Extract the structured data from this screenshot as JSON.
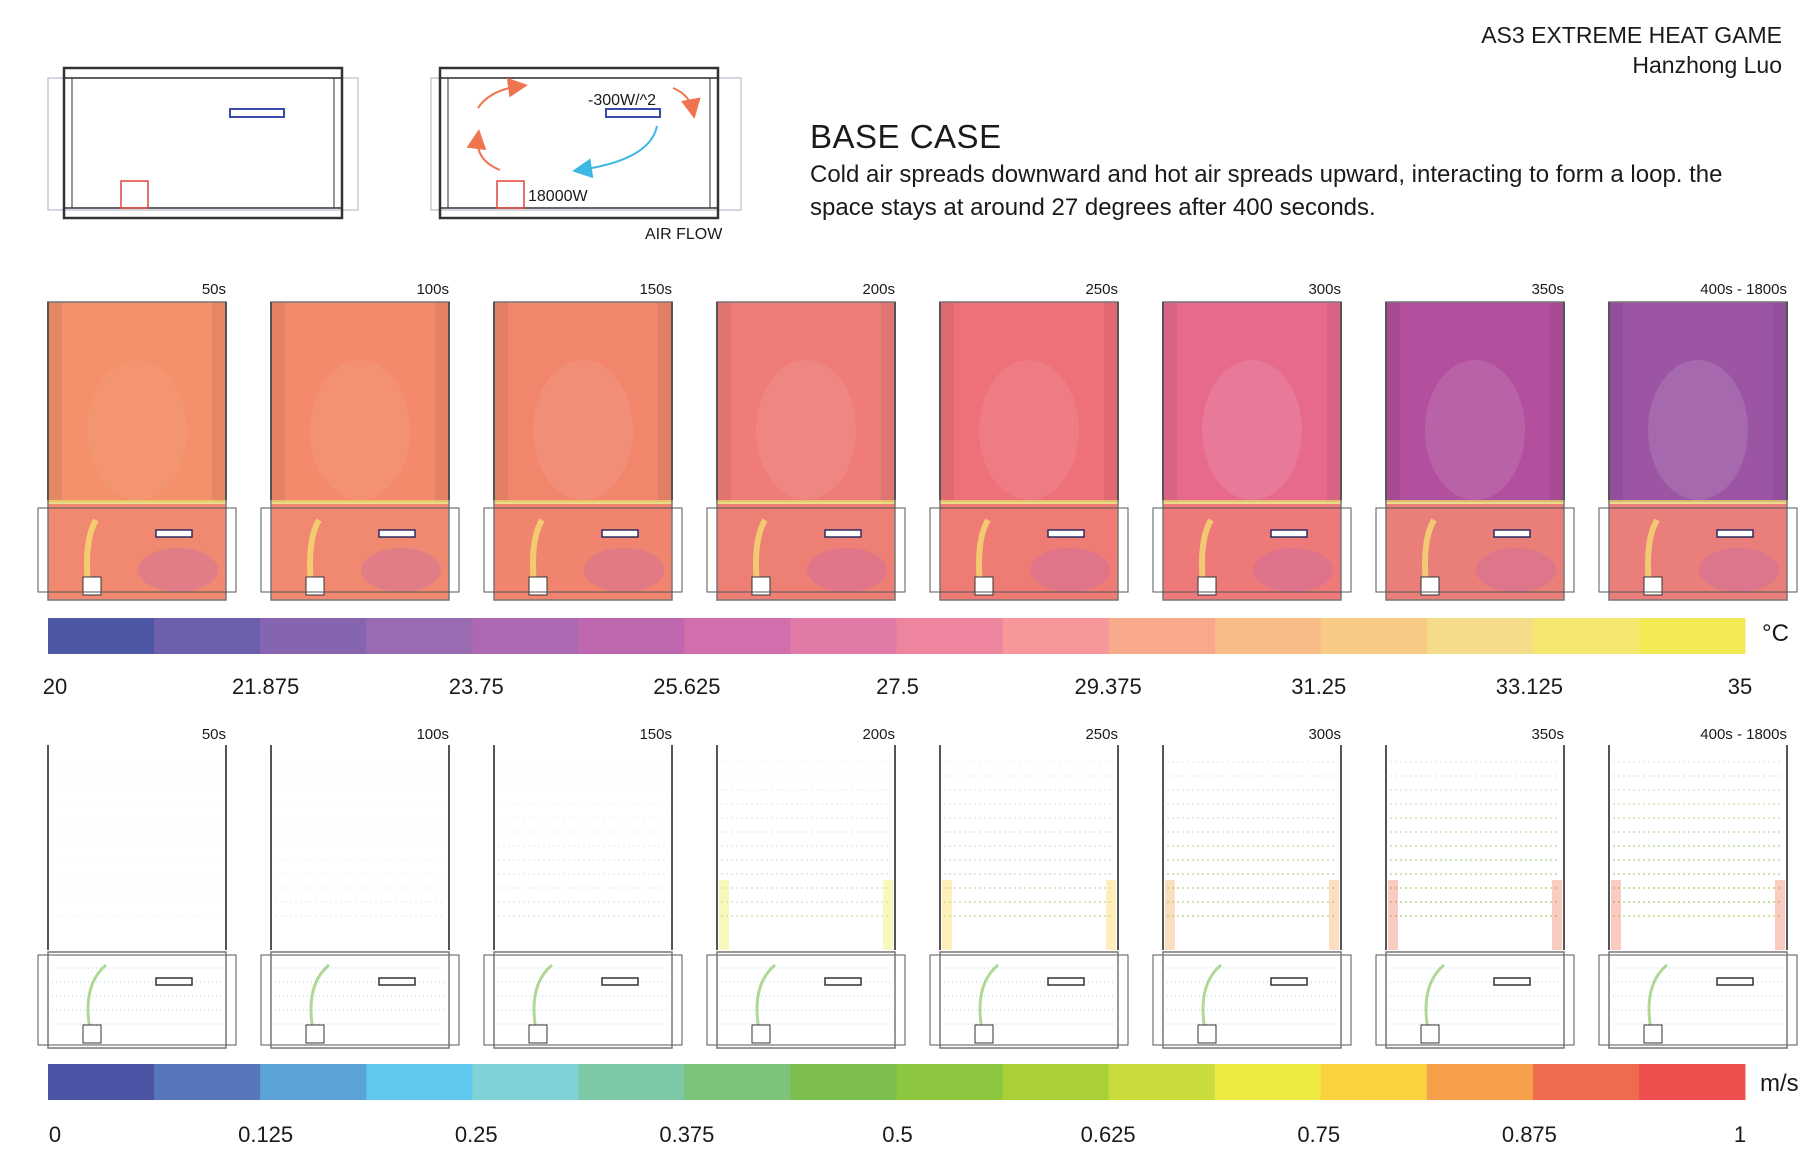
{
  "header": {
    "project": "AS3 EXTREME HEAT GAME",
    "author": "Hanzhong Luo"
  },
  "case": {
    "title": "BASE CASE",
    "description": "Cold air spreads downward and hot air spreads upward, interacting to form a loop. the space stays at around 27 degrees after 400 seconds."
  },
  "schematic": {
    "cooler_label": "-300W/^2",
    "heater_label": "18000W",
    "airflow_label": "AIR FLOW"
  },
  "timesteps": [
    "50s",
    "100s",
    "150s",
    "200s",
    "250s",
    "300s",
    "350s",
    "400s - 1800s"
  ],
  "temperature": {
    "unit": "°C",
    "tick_labels": [
      "20",
      "21.875",
      "23.75",
      "25.625",
      "27.5",
      "29.375",
      "31.25",
      "33.125",
      "35"
    ],
    "colors": [
      "#4e57a6",
      "#6c5fac",
      "#8565b0",
      "#9a6bb1",
      "#ac68b0",
      "#bf67ae",
      "#d06fac",
      "#e07aa6",
      "#ee859f",
      "#f6979a",
      "#f8a98b",
      "#f9bb86",
      "#f7cb85",
      "#f4dc8a",
      "#f5e870",
      "#f3ea55"
    ],
    "upper_colors": [
      "#f4906a",
      "#f48a6b",
      "#f2866d",
      "#ef7c78",
      "#ee7079",
      "#e76a8d",
      "#b24f9e",
      "#9b55a3"
    ],
    "lower_colors": [
      "#f08970",
      "#f08970",
      "#f0846f",
      "#ee7f74",
      "#ee7c74",
      "#ed7a78",
      "#ea7f79",
      "#e97e7a"
    ]
  },
  "velocity": {
    "unit": "m/s",
    "tick_labels": [
      "0",
      "0.125",
      "0.25",
      "0.375",
      "0.5",
      "0.625",
      "0.75",
      "0.875",
      "1"
    ],
    "colors": [
      "#4c55a5",
      "#5876bb",
      "#5ba2d8",
      "#5fc8ee",
      "#7fd2d5",
      "#7cc9a6",
      "#7dc37a",
      "#7cbf4e",
      "#8dc63f",
      "#aad038",
      "#c9dc3c",
      "#ece942",
      "#fbd240",
      "#f6a04b",
      "#f06b4d",
      "#ee4f4f"
    ],
    "intensity": [
      0.1,
      0.18,
      0.3,
      0.45,
      0.55,
      0.7,
      0.8,
      0.85
    ]
  }
}
